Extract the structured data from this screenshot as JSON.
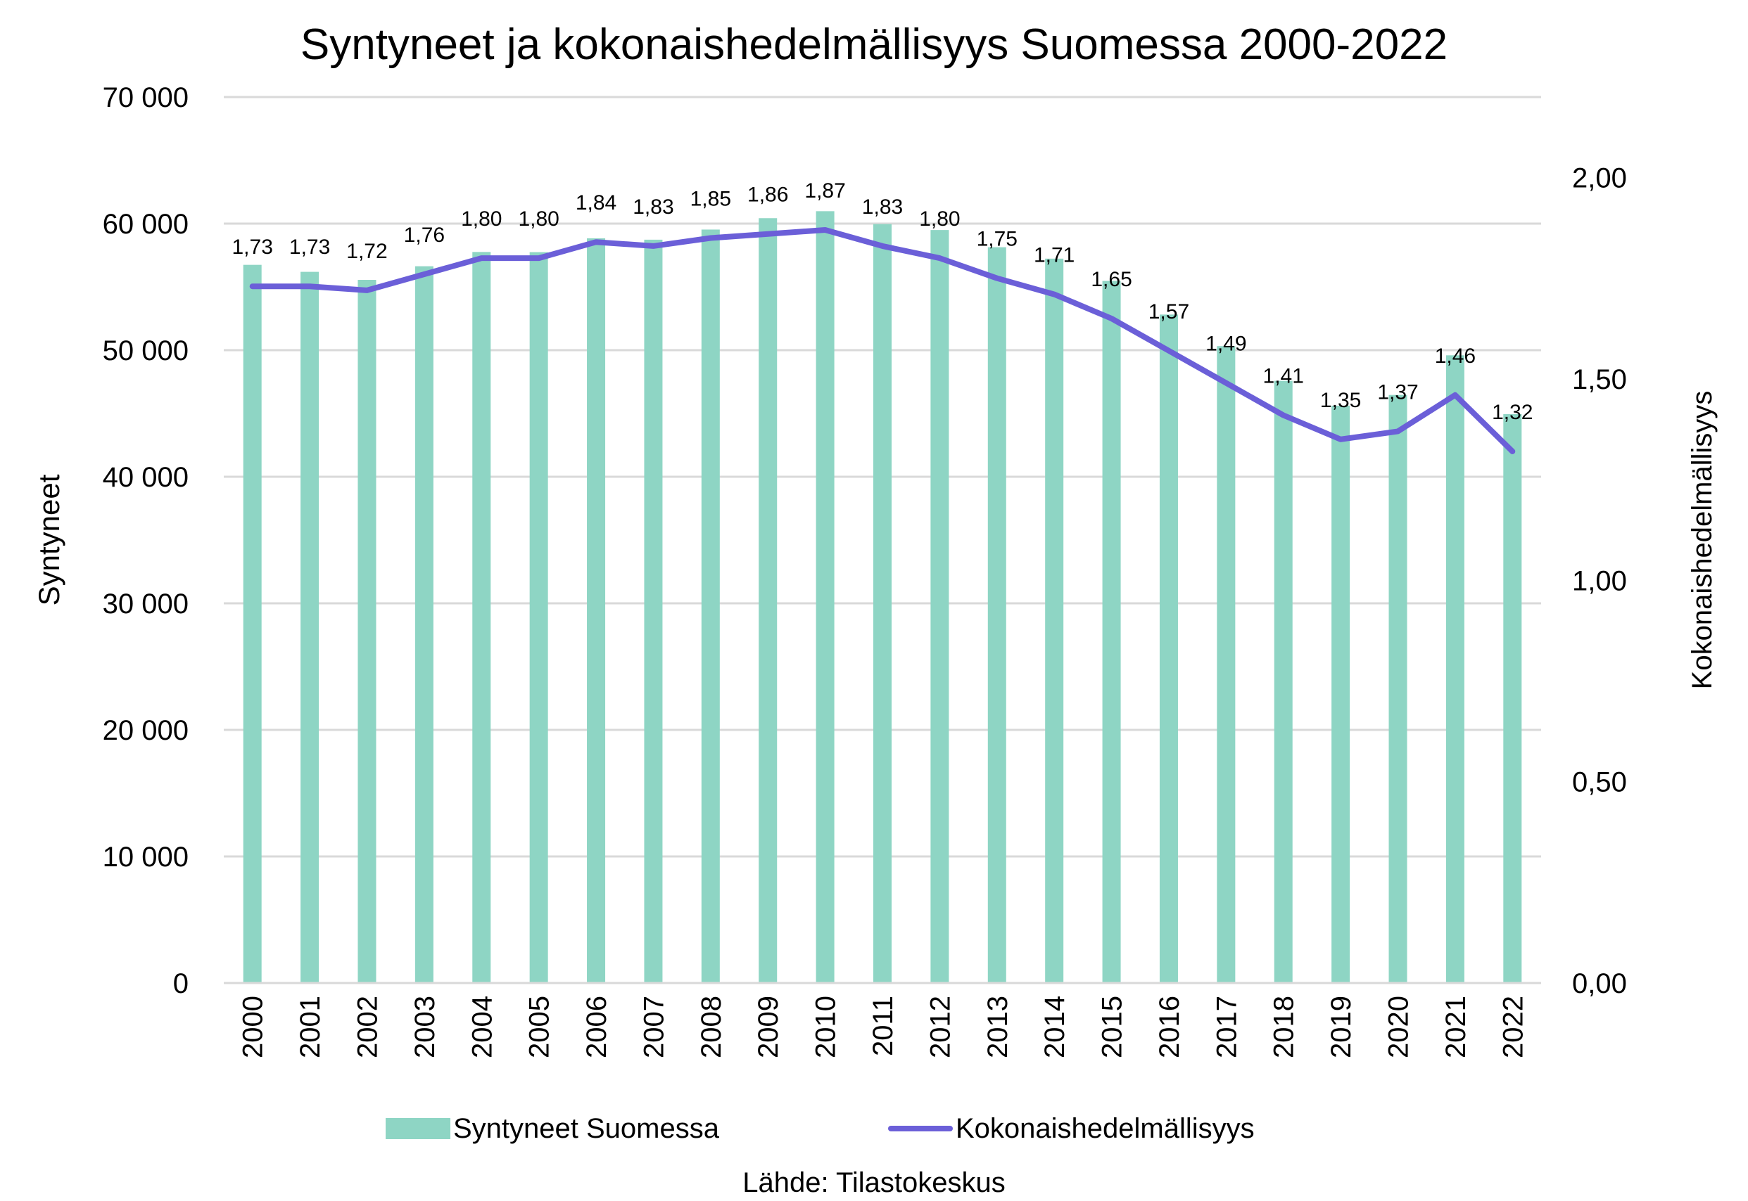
{
  "chart_data": {
    "type": "bar",
    "title": "Syntyneet ja kokonaishedelmällisyys Suomessa 2000-2022",
    "categories": [
      "2000",
      "2001",
      "2002",
      "2003",
      "2004",
      "2005",
      "2006",
      "2007",
      "2008",
      "2009",
      "2010",
      "2011",
      "2012",
      "2013",
      "2014",
      "2015",
      "2016",
      "2017",
      "2018",
      "2019",
      "2020",
      "2021",
      "2022"
    ],
    "series": [
      {
        "name": "Syntyneet Suomessa",
        "type": "bar",
        "axis": "left",
        "color": "#8ED5C4",
        "values": [
          56742,
          56189,
          55555,
          56630,
          57758,
          57745,
          58840,
          58729,
          59530,
          60430,
          60980,
          59961,
          59493,
          58134,
          57232,
          55472,
          52814,
          50321,
          47577,
          45613,
          46463,
          49594,
          44951
        ]
      },
      {
        "name": "Kokonaishedelmällisyys",
        "type": "line",
        "axis": "right",
        "color": "#6B5FD8",
        "values": [
          1.73,
          1.73,
          1.72,
          1.76,
          1.8,
          1.8,
          1.84,
          1.83,
          1.85,
          1.86,
          1.87,
          1.83,
          1.8,
          1.75,
          1.71,
          1.65,
          1.57,
          1.49,
          1.41,
          1.35,
          1.37,
          1.46,
          1.32
        ],
        "labels": [
          "1,73",
          "1,73",
          "1,72",
          "1,76",
          "1,80",
          "1,80",
          "1,84",
          "1,83",
          "1,85",
          "1,86",
          "1,87",
          "1,83",
          "1,80",
          "1,75",
          "1,71",
          "1,65",
          "1,57",
          "1,49",
          "1,41",
          "1,35",
          "1,37",
          "1,46",
          "1,32"
        ]
      }
    ],
    "y_left": {
      "label": "Syntyneet",
      "lim": [
        0,
        70000
      ],
      "ticks": [
        0,
        10000,
        20000,
        30000,
        40000,
        50000,
        60000,
        70000
      ],
      "tick_labels": [
        "0",
        "10 000",
        "20 000",
        "30 000",
        "40 000",
        "50 000",
        "60 000",
        "70 000"
      ]
    },
    "y_right": {
      "label": "Kokonaishedelmällisyys",
      "lim": [
        0,
        2.2
      ],
      "ticks": [
        0,
        0.5,
        1.0,
        1.5,
        2.0
      ],
      "tick_labels": [
        "0,00",
        "0,50",
        "1,00",
        "1,50",
        "2,00"
      ]
    },
    "grid": true,
    "legend_position": "bottom",
    "source": "Lähde: Tilastokeskus"
  }
}
